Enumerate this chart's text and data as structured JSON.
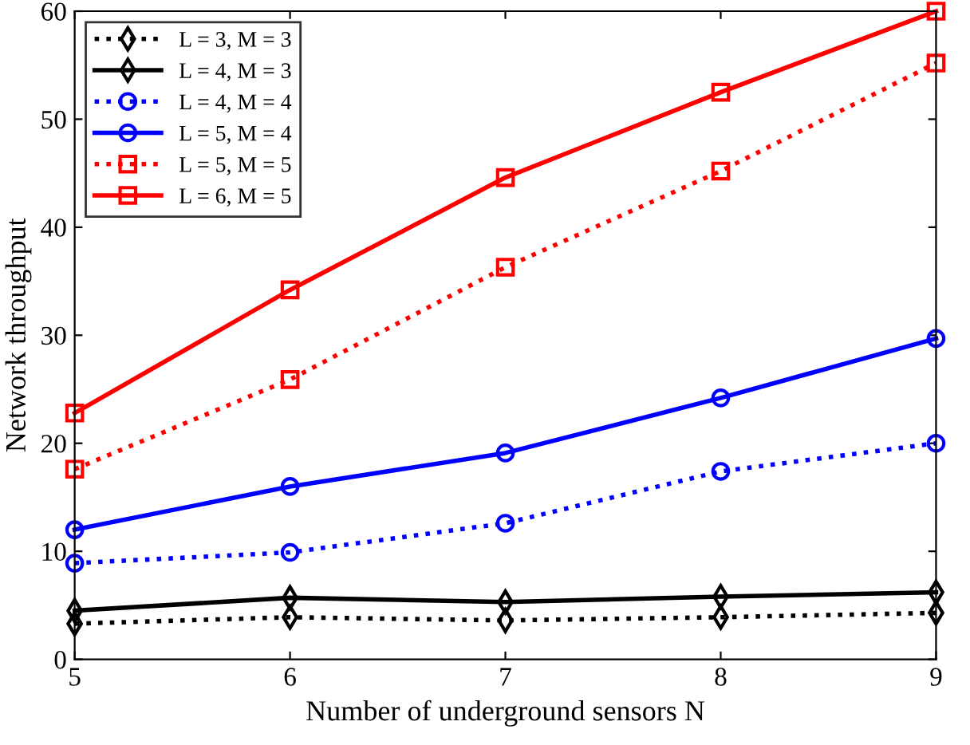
{
  "chart_data": {
    "type": "line",
    "xlabel": "Number of underground sensors N",
    "ylabel": "Network throughput",
    "x": [
      5,
      6,
      7,
      8,
      9
    ],
    "xlim": [
      5,
      9
    ],
    "xticks": [
      5,
      6,
      7,
      8,
      9
    ],
    "ylim": [
      0,
      60
    ],
    "yticks": [
      0,
      10,
      20,
      30,
      40,
      50,
      60
    ],
    "grid": false,
    "legend": "top left",
    "series": [
      {
        "name": "L = 3, M = 3",
        "color": "#000000",
        "marker": "diamond",
        "line_style": "dotted",
        "values": [
          3.3,
          3.9,
          3.6,
          3.9,
          4.3
        ]
      },
      {
        "name": "L = 4, M = 3",
        "color": "#000000",
        "marker": "diamond",
        "line_style": "solid",
        "values": [
          4.5,
          5.7,
          5.3,
          5.8,
          6.2
        ]
      },
      {
        "name": "L = 4, M = 4",
        "color": "#0000ff",
        "marker": "circle",
        "line_style": "dotted",
        "values": [
          8.9,
          9.9,
          12.6,
          17.4,
          20.0
        ]
      },
      {
        "name": "L = 5, M = 4",
        "color": "#0000ff",
        "marker": "circle",
        "line_style": "solid",
        "values": [
          12.0,
          16.0,
          19.1,
          24.2,
          29.7
        ]
      },
      {
        "name": "L = 5, M = 5",
        "color": "#ff0000",
        "marker": "square",
        "line_style": "dotted",
        "values": [
          17.6,
          25.9,
          36.3,
          45.2,
          55.2
        ]
      },
      {
        "name": "L = 6, M = 5",
        "color": "#ff0000",
        "marker": "square",
        "line_style": "solid",
        "values": [
          22.8,
          34.2,
          44.6,
          52.5,
          60.0
        ]
      }
    ]
  }
}
